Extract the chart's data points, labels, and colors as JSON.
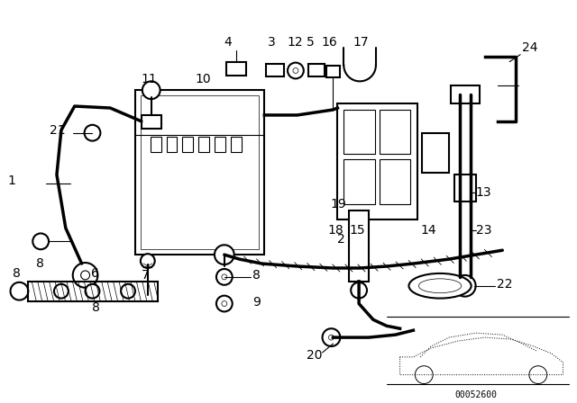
{
  "bg_color": "#ffffff",
  "diagram_number": "00052600",
  "font_size_labels": 10,
  "line_color": "#000000",
  "line_width": 1.5,
  "thin_line": 0.8
}
